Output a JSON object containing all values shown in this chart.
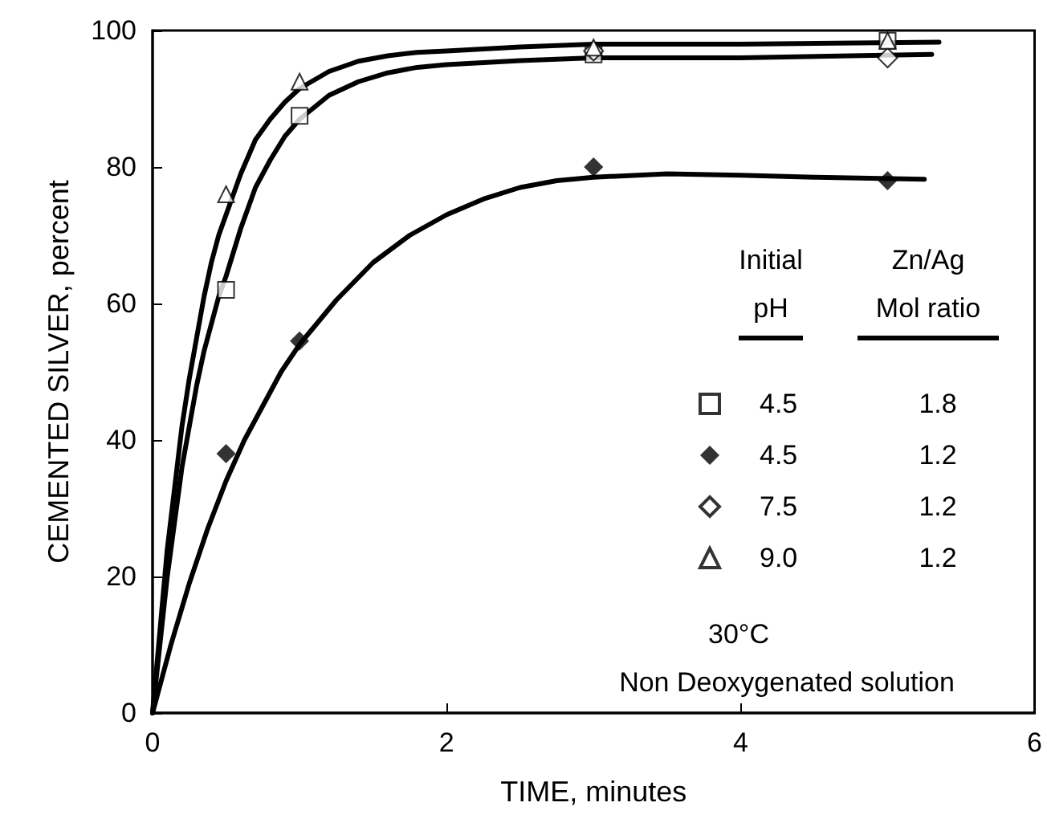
{
  "chart_data": {
    "type": "scatter",
    "xlabel": "TIME, minutes",
    "ylabel": "CEMENTED SILVER, percent",
    "xlim": [
      0,
      6
    ],
    "xticks": [
      0,
      2,
      4,
      6
    ],
    "ylim": [
      0,
      100
    ],
    "yticks": [
      0,
      20,
      40,
      60,
      80,
      100
    ],
    "grid": false,
    "legend": "right",
    "annotations": [
      "Initial\npH",
      "Zn/Ag\nMol ratio",
      "30°C",
      "Non Deoxygenated solution"
    ],
    "series": [
      {
        "name": "4.5 1.8",
        "marker": "square",
        "color": "#ffffff",
        "x": [
          0.5,
          1,
          3,
          5
        ],
        "values": [
          62,
          87.5,
          96.5,
          98.5
        ]
      },
      {
        "name": "4.5 1.2",
        "marker": "diamond",
        "color": "#000000",
        "x": [
          0.5,
          1,
          3,
          5
        ],
        "values": [
          38,
          54.5,
          80,
          78
        ]
      },
      {
        "name": "7.5 1.2",
        "marker": "diamond",
        "color": "#ffffff",
        "x": [
          3,
          5
        ],
        "values": [
          97,
          96
        ]
      },
      {
        "name": "9.0 1.2",
        "marker": "triangle",
        "color": "#ffffff",
        "x": [
          0.5,
          1,
          3,
          5
        ],
        "values": [
          76,
          92.5,
          97.5,
          98.5
        ]
      },
      {
        "type": "line",
        "marker": "none",
        "color": "#000000",
        "x": [
          0,
          0.05,
          0.1,
          0.15,
          0.2,
          0.25,
          0.3,
          0.35,
          0.4,
          0.45,
          0.5,
          0.6,
          0.7,
          0.8,
          0.9,
          1,
          1.2,
          1.4,
          1.6,
          1.8,
          2,
          2.5,
          3,
          4,
          5.35
        ],
        "values": [
          0,
          12,
          24,
          33,
          42,
          49,
          55,
          61,
          66,
          70,
          73,
          79,
          84,
          87,
          89.5,
          91.5,
          94,
          95.5,
          96.3,
          96.8,
          97,
          97.6,
          98,
          98,
          98.3
        ]
      },
      {
        "type": "line",
        "marker": "none",
        "color": "#000000",
        "x": [
          0,
          0.05,
          0.1,
          0.15,
          0.2,
          0.25,
          0.3,
          0.35,
          0.4,
          0.45,
          0.5,
          0.6,
          0.7,
          0.8,
          0.9,
          1,
          1.2,
          1.4,
          1.6,
          1.8,
          2,
          2.5,
          3,
          4,
          5.3
        ],
        "values": [
          0,
          10,
          20,
          28,
          36,
          42,
          48,
          53,
          57,
          61,
          64,
          71,
          77,
          81,
          84.5,
          87,
          90.5,
          92.5,
          93.8,
          94.6,
          95,
          95.6,
          96,
          96,
          96.5
        ]
      },
      {
        "type": "line",
        "marker": "none",
        "color": "#000000",
        "x": [
          0,
          0.125,
          0.25,
          0.375,
          0.5,
          0.625,
          0.75,
          0.875,
          1,
          1.25,
          1.5,
          1.75,
          2,
          2.25,
          2.5,
          2.75,
          3,
          3.5,
          4,
          4.5,
          5.25
        ],
        "values": [
          0,
          10,
          19,
          27,
          34,
          40,
          45,
          50,
          54,
          60.5,
          66,
          70,
          73,
          75.3,
          77,
          78,
          78.5,
          79,
          78.8,
          78.5,
          78.2
        ]
      }
    ]
  }
}
